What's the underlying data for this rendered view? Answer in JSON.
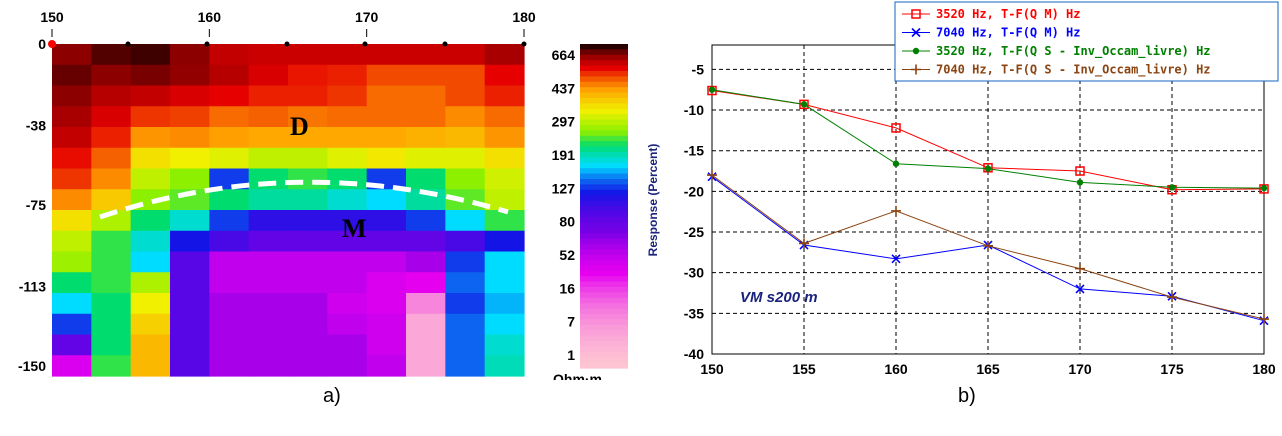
{
  "captions": {
    "a": "a)",
    "b": "b)"
  },
  "chart_data": [
    {
      "type": "heatmap",
      "x_ticks": [
        "150",
        "160",
        "170",
        "180"
      ],
      "x_range": [
        150,
        180
      ],
      "y_ticks": [
        "0",
        "-38",
        "-75",
        "-113",
        "-150"
      ],
      "y_range": [
        0,
        -150
      ],
      "colorbar_labels": [
        "664",
        "437",
        "297",
        "191",
        "127",
        "80",
        "52",
        "16",
        "7",
        "1"
      ],
      "colorbar_unit": "Ohm·m",
      "annotations": [
        "D",
        "M"
      ],
      "grid": [
        [
          560,
          620,
          640,
          560,
          480,
          470,
          470,
          470,
          470,
          470,
          470,
          520
        ],
        [
          600,
          560,
          580,
          550,
          500,
          450,
          410,
          400,
          360,
          360,
          360,
          430
        ],
        [
          560,
          500,
          480,
          450,
          430,
          400,
          400,
          380,
          330,
          330,
          360,
          400
        ],
        [
          520,
          450,
          380,
          370,
          330,
          340,
          320,
          330,
          330,
          330,
          300,
          330
        ],
        [
          480,
          400,
          290,
          300,
          280,
          270,
          270,
          270,
          270,
          260,
          250,
          290
        ],
        [
          420,
          340,
          200,
          180,
          170,
          150,
          150,
          170,
          190,
          170,
          170,
          200
        ],
        [
          380,
          300,
          150,
          120,
          40,
          90,
          100,
          90,
          40,
          90,
          120,
          160
        ],
        [
          300,
          230,
          120,
          110,
          90,
          80,
          80,
          70,
          60,
          80,
          110,
          150
        ],
        [
          200,
          140,
          90,
          70,
          40,
          30,
          30,
          30,
          30,
          40,
          60,
          100
        ],
        [
          150,
          100,
          70,
          35,
          25,
          20,
          20,
          20,
          20,
          20,
          25,
          35
        ],
        [
          130,
          100,
          60,
          22,
          10,
          10,
          10,
          10,
          10,
          12,
          40,
          60
        ],
        [
          90,
          100,
          140,
          22,
          10,
          10,
          10,
          10,
          8,
          7,
          45,
          60
        ],
        [
          60,
          90,
          180,
          22,
          12,
          12,
          12,
          9,
          8,
          3,
          40,
          55
        ],
        [
          40,
          90,
          220,
          22,
          12,
          12,
          12,
          10,
          9,
          2,
          45,
          60
        ],
        [
          20,
          90,
          250,
          22,
          12,
          12,
          12,
          12,
          9,
          2,
          45,
          70
        ],
        [
          8,
          100,
          250,
          22,
          12,
          12,
          12,
          12,
          10,
          2,
          45,
          75
        ]
      ]
    },
    {
      "type": "line",
      "x": [
        150,
        155,
        160,
        165,
        170,
        175,
        180
      ],
      "xlim": [
        150,
        180
      ],
      "ylim": [
        -40,
        -2
      ],
      "x_ticks": [
        "150",
        "155",
        "160",
        "165",
        "170",
        "175",
        "180"
      ],
      "y_ticks": [
        "-5",
        "-10",
        "-15",
        "-20",
        "-25",
        "-30",
        "-35",
        "-40"
      ],
      "ylabel": "Response (Percent)",
      "annotation": "VM s200 m",
      "grid": true,
      "legend_position": "top-right",
      "series": [
        {
          "name": "3520 Hz, T-F(Q M) Hz",
          "color": "#ff0000",
          "marker": "square",
          "values": [
            -7.6,
            -9.3,
            -12.2,
            -17.1,
            -17.5,
            -19.8,
            -19.7
          ]
        },
        {
          "name": "7040 Hz, T-F(Q M) Hz",
          "color": "#0000ff",
          "marker": "x",
          "values": [
            -18.2,
            -26.6,
            -28.3,
            -26.6,
            -32.0,
            -32.9,
            -35.9
          ]
        },
        {
          "name": "3520 Hz, T-F(Q S - Inv_Occam_livre) Hz",
          "color": "#008000",
          "marker": "circle",
          "values": [
            -7.5,
            -9.3,
            -16.6,
            -17.2,
            -18.9,
            -19.5,
            -19.6
          ]
        },
        {
          "name": "7040 Hz, T-F(Q S - Inv_Occam_livre) Hz",
          "color": "#8b4513",
          "marker": "plus",
          "values": [
            -18.0,
            -26.4,
            -22.4,
            -26.7,
            -29.5,
            -33.0,
            -35.7
          ]
        }
      ]
    }
  ]
}
